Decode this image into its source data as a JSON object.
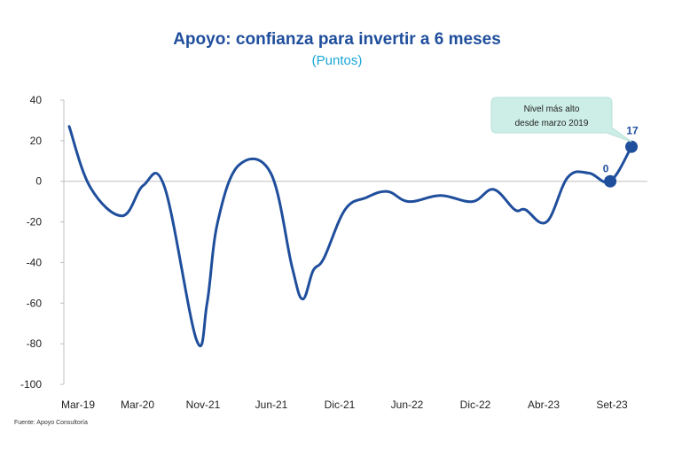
{
  "chart_data": {
    "type": "line",
    "title": "Apoyo: confianza para invertir a 6 meses",
    "subtitle": "(Puntos)",
    "xlabel": "",
    "ylabel": "",
    "ylim": [
      -100,
      40
    ],
    "yticks": [
      40,
      20,
      0,
      -20,
      -40,
      -60,
      -80,
      -100
    ],
    "xticks": [
      "Mar-19",
      "Mar-20",
      "Nov-21",
      "Jun-21",
      "Dic-21",
      "Jun-22",
      "Dic-22",
      "Abr-23",
      "Set-23"
    ],
    "grid": false,
    "series": [
      {
        "color": "#1f4e9c",
        "x": [
          0,
          2,
          5,
          7,
          9,
          12,
          13,
          14,
          16,
          19,
          21,
          22,
          23,
          24,
          26,
          28,
          30,
          32,
          35,
          38,
          40,
          42,
          43,
          45,
          47,
          49,
          51,
          53
        ],
        "values": [
          27,
          -3,
          -17,
          -2,
          -3,
          -78,
          -60,
          -20,
          8,
          4,
          -42,
          -58,
          -44,
          -38,
          -14,
          -8,
          -5,
          -10,
          -7,
          -10,
          -4,
          -14,
          -14,
          -20,
          2,
          4,
          0,
          17
        ]
      }
    ],
    "highlight_points": [
      {
        "label": "0",
        "x": 51,
        "y": 0
      },
      {
        "label": "17",
        "x": 53,
        "y": 17
      }
    ],
    "annotation": {
      "line1": "Nivel más alto",
      "line2": "desde marzo 2019"
    }
  },
  "source": "Fuente: Apoyo Consultoría"
}
